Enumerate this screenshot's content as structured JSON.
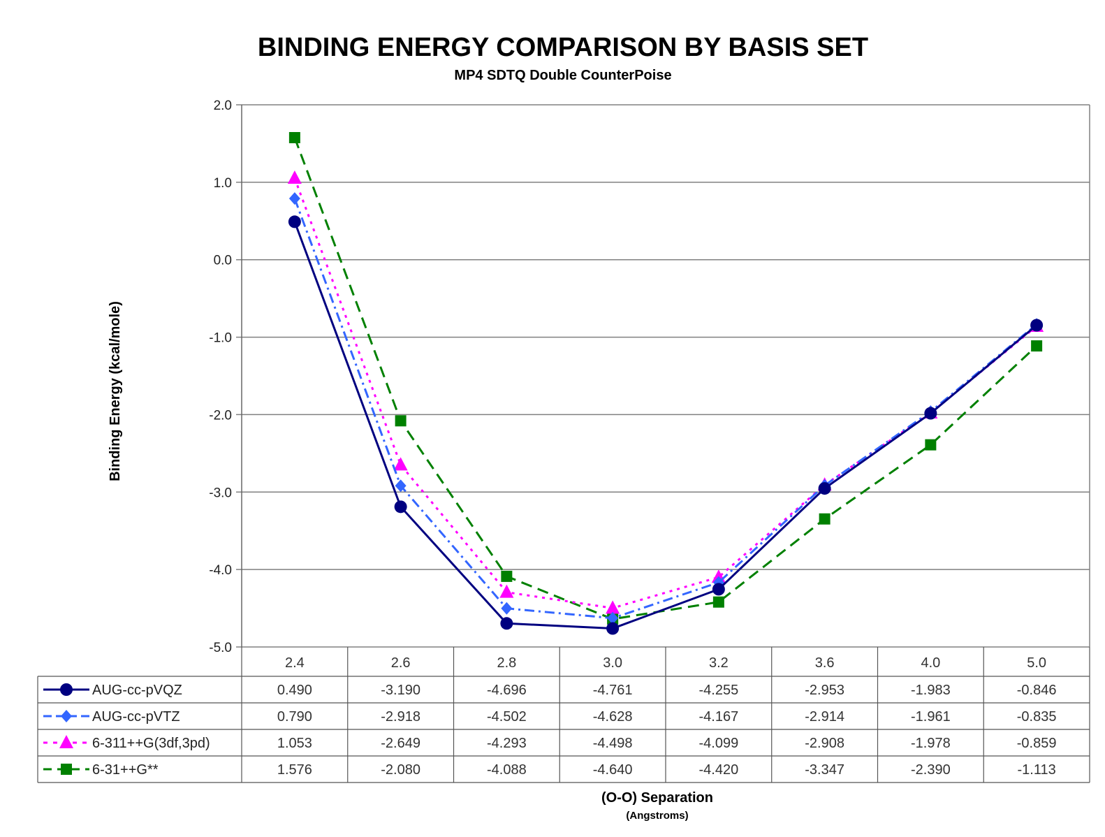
{
  "colors": {
    "AUG-cc-pVQZ": "#000080",
    "AUG-cc-pVTZ": "#3366ff",
    "6-311++G(3df,3pd)": "#ff00ff",
    "6-31++G**": "#008000",
    "grid": "#808080"
  },
  "chart_data": {
    "type": "line",
    "title": "BINDING ENERGY COMPARISON BY BASIS SET",
    "subtitle": "MP4 SDTQ Double CounterPoise",
    "ylabel": "Binding Energy (kcal/mole)",
    "xlabel": "(O-O) Separation",
    "xunit": "(Angstroms)",
    "ylim": [
      -5.0,
      2.0
    ],
    "yticks": [
      "2.0",
      "1.0",
      "0.0",
      "-1.0",
      "-2.0",
      "-3.0",
      "-4.0",
      "-5.0"
    ],
    "grid": true,
    "legend": "data table",
    "categories": [
      "2.4",
      "2.6",
      "2.8",
      "3.0",
      "3.2",
      "3.6",
      "4.0",
      "5.0"
    ],
    "series": [
      {
        "name": "AUG-cc-pVQZ",
        "marker": "circle",
        "dash": "solid",
        "values": [
          0.49,
          -3.19,
          -4.696,
          -4.761,
          -4.255,
          -2.953,
          -1.983,
          -0.846
        ],
        "labels": [
          "0.490",
          "-3.190",
          "-4.696",
          "-4.761",
          "-4.255",
          "-2.953",
          "-1.983",
          "-0.846"
        ]
      },
      {
        "name": "AUG-cc-pVTZ",
        "marker": "diamond",
        "dash": "dash-dot",
        "values": [
          0.79,
          -2.918,
          -4.502,
          -4.628,
          -4.167,
          -2.914,
          -1.961,
          -0.835
        ],
        "labels": [
          "0.790",
          "-2.918",
          "-4.502",
          "-4.628",
          "-4.167",
          "-2.914",
          "-1.961",
          "-0.835"
        ]
      },
      {
        "name": "6-311++G(3df,3pd)",
        "marker": "triangle",
        "dash": "dotted",
        "values": [
          1.053,
          -2.649,
          -4.293,
          -4.498,
          -4.099,
          -2.908,
          -1.978,
          -0.859
        ],
        "labels": [
          "1.053",
          "-2.649",
          "-4.293",
          "-4.498",
          "-4.099",
          "-2.908",
          "-1.978",
          "-0.859"
        ]
      },
      {
        "name": "6-31++G**",
        "marker": "square",
        "dash": "dashed",
        "values": [
          1.576,
          -2.08,
          -4.088,
          -4.64,
          -4.42,
          -3.347,
          -2.39,
          -1.113
        ],
        "labels": [
          "1.576",
          "-2.080",
          "-4.088",
          "-4.640",
          "-4.420",
          "-3.347",
          "-2.390",
          "-1.113"
        ]
      }
    ]
  }
}
